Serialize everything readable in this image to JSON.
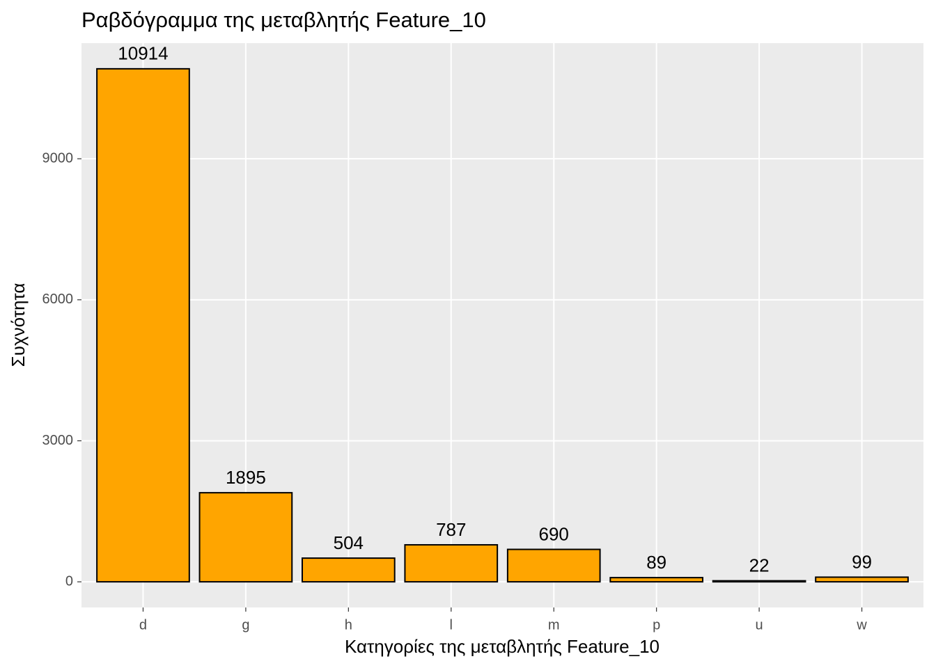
{
  "chart_data": {
    "type": "bar",
    "title": "Ραβδόγραμμα της μεταβλητής Feature_10",
    "x_label": "Κατηγορίες της μεταβλητής Feature_10",
    "y_label": "Συχνότητα",
    "categories": [
      "d",
      "g",
      "h",
      "l",
      "m",
      "p",
      "u",
      "w"
    ],
    "values": [
      10914,
      1895,
      504,
      787,
      690,
      89,
      22,
      99
    ],
    "color": "#ffa500",
    "ylim": [
      -545.7,
      11459.7
    ],
    "yticks": [
      0,
      3000,
      6000,
      9000
    ],
    "grid": true
  }
}
